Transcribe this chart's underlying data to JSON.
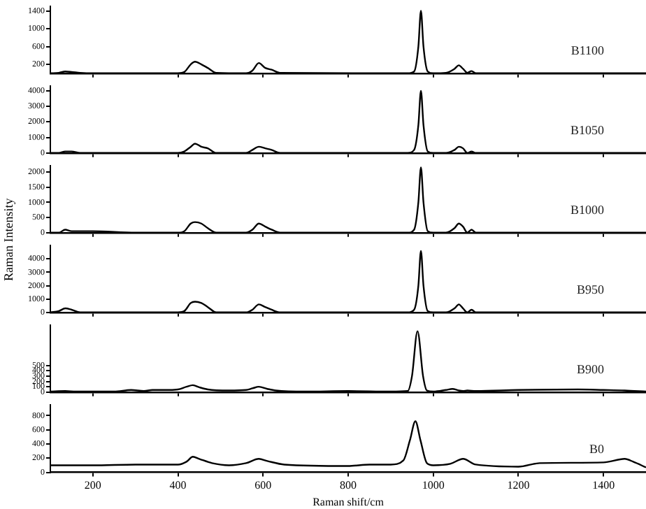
{
  "chart_data": [
    {
      "type": "line",
      "x": [
        100,
        120,
        135,
        150,
        170,
        200,
        300,
        400,
        415,
        430,
        440,
        455,
        470,
        490,
        560,
        575,
        590,
        605,
        620,
        640,
        900,
        940,
        955,
        965,
        971,
        977,
        987,
        1000,
        1030,
        1050,
        1060,
        1070,
        1080,
        1090,
        1100,
        1200,
        1500
      ],
      "series": [
        {
          "name": "B1100",
          "color": "#000000",
          "values": [
            0,
            10,
            40,
            30,
            10,
            0,
            0,
            0,
            30,
            200,
            260,
            200,
            120,
            10,
            0,
            60,
            230,
            120,
            80,
            10,
            0,
            0,
            40,
            600,
            1400,
            600,
            40,
            0,
            10,
            100,
            180,
            100,
            10,
            50,
            0,
            0,
            0
          ]
        }
      ],
      "xlim": [
        100,
        1500
      ],
      "xticks": [
        200,
        400,
        600,
        800,
        1000,
        1200,
        1400
      ],
      "ylim": [
        0,
        1500
      ],
      "yticks": [
        200,
        600,
        1000,
        1400
      ],
      "tick_labels": "y",
      "marker": "none"
    },
    {
      "type": "line",
      "x": [
        100,
        120,
        135,
        150,
        170,
        200,
        300,
        400,
        415,
        430,
        440,
        455,
        470,
        490,
        560,
        575,
        590,
        605,
        620,
        640,
        900,
        940,
        955,
        965,
        971,
        977,
        987,
        1000,
        1030,
        1050,
        1060,
        1070,
        1080,
        1090,
        1100,
        1200,
        1500
      ],
      "series": [
        {
          "name": "B1050",
          "color": "#000000",
          "values": [
            0,
            0,
            100,
            100,
            0,
            0,
            0,
            0,
            100,
            400,
            600,
            400,
            300,
            0,
            0,
            200,
            400,
            300,
            200,
            0,
            0,
            0,
            200,
            1800,
            4000,
            1800,
            100,
            0,
            0,
            200,
            400,
            300,
            0,
            100,
            0,
            0,
            0
          ]
        }
      ],
      "xlim": [
        100,
        1500
      ],
      "xticks": [
        200,
        400,
        600,
        800,
        1000,
        1200,
        1400
      ],
      "ylim": [
        0,
        4300
      ],
      "yticks": [
        0,
        1000,
        2000,
        3000,
        4000
      ],
      "tick_labels": "y",
      "marker": "none"
    },
    {
      "type": "line",
      "x": [
        100,
        120,
        135,
        150,
        170,
        200,
        300,
        400,
        415,
        430,
        440,
        455,
        470,
        490,
        560,
        575,
        590,
        605,
        620,
        640,
        900,
        940,
        955,
        965,
        971,
        977,
        987,
        1000,
        1030,
        1050,
        1060,
        1070,
        1080,
        1090,
        1100,
        1200,
        1500
      ],
      "series": [
        {
          "name": "B1000",
          "color": "#000000",
          "values": [
            0,
            0,
            100,
            50,
            50,
            50,
            0,
            0,
            50,
            300,
            350,
            300,
            150,
            0,
            0,
            100,
            300,
            200,
            100,
            0,
            0,
            0,
            100,
            1000,
            2150,
            1000,
            50,
            0,
            0,
            150,
            300,
            200,
            0,
            100,
            0,
            0,
            0
          ]
        }
      ],
      "xlim": [
        100,
        1500
      ],
      "xticks": [
        200,
        400,
        600,
        800,
        1000,
        1200,
        1400
      ],
      "ylim": [
        0,
        2200
      ],
      "yticks": [
        0,
        500,
        1000,
        1500,
        2000
      ],
      "ylabel": "Raman Intensity",
      "tick_labels": "y",
      "marker": "none"
    },
    {
      "type": "line",
      "x": [
        100,
        120,
        135,
        150,
        170,
        200,
        300,
        400,
        415,
        430,
        440,
        455,
        470,
        490,
        560,
        575,
        590,
        605,
        620,
        640,
        900,
        940,
        955,
        965,
        971,
        977,
        987,
        1000,
        1030,
        1050,
        1060,
        1070,
        1080,
        1090,
        1100,
        1200,
        1500
      ],
      "series": [
        {
          "name": "B950",
          "color": "#000000",
          "values": [
            0,
            100,
            300,
            200,
            0,
            0,
            0,
            0,
            100,
            700,
            800,
            700,
            400,
            0,
            0,
            200,
            600,
            400,
            200,
            0,
            0,
            0,
            200,
            2000,
            4600,
            2000,
            100,
            0,
            0,
            300,
            600,
            300,
            0,
            200,
            0,
            0,
            0
          ]
        }
      ],
      "xlim": [
        100,
        1500
      ],
      "xticks": [
        200,
        400,
        600,
        800,
        1000,
        1200,
        1400
      ],
      "ylim": [
        0,
        5000
      ],
      "yticks": [
        0,
        1000,
        2000,
        3000,
        4000
      ],
      "tick_labels": "y",
      "marker": "none"
    },
    {
      "type": "line",
      "x": [
        100,
        135,
        160,
        200,
        250,
        290,
        320,
        340,
        380,
        400,
        420,
        435,
        450,
        470,
        520,
        560,
        575,
        590,
        610,
        630,
        700,
        800,
        900,
        940,
        950,
        963,
        976,
        985,
        1000,
        1030,
        1045,
        1060,
        1070,
        1080,
        1100,
        1200,
        1340,
        1400,
        1450,
        1500
      ],
      "series": [
        {
          "name": "B900",
          "color": "#000000",
          "values": [
            10,
            20,
            10,
            10,
            10,
            40,
            20,
            40,
            40,
            50,
            100,
            130,
            90,
            50,
            30,
            40,
            70,
            100,
            60,
            30,
            10,
            20,
            10,
            20,
            300,
            1140,
            300,
            30,
            10,
            40,
            60,
            30,
            20,
            30,
            20,
            40,
            50,
            40,
            30,
            10
          ]
        }
      ],
      "xlim": [
        100,
        1500
      ],
      "xticks": [
        200,
        400,
        600,
        800,
        1000,
        1200,
        1400
      ],
      "ylim": [
        0,
        1250
      ],
      "yticks": [
        0,
        100,
        200,
        300,
        400,
        500
      ],
      "tick_labels": "y",
      "marker": "none"
    },
    {
      "type": "line",
      "x": [
        100,
        200,
        300,
        400,
        420,
        435,
        450,
        480,
        520,
        560,
        590,
        610,
        650,
        800,
        850,
        900,
        930,
        945,
        958,
        970,
        985,
        1000,
        1040,
        1070,
        1100,
        1200,
        1250,
        1400,
        1450,
        1470,
        1500
      ],
      "series": [
        {
          "name": "B0",
          "color": "#000000",
          "values": [
            100,
            100,
            110,
            110,
            150,
            220,
            190,
            130,
            100,
            130,
            190,
            160,
            110,
            90,
            110,
            110,
            170,
            450,
            720,
            450,
            130,
            100,
            120,
            190,
            110,
            80,
            130,
            140,
            190,
            150,
            70
          ]
        }
      ],
      "xlim": [
        100,
        1500
      ],
      "xticks": [
        200,
        400,
        600,
        800,
        1000,
        1200,
        1400
      ],
      "ylim": [
        0,
        950
      ],
      "yticks": [
        0,
        200,
        400,
        600,
        800
      ],
      "xlabel": "Raman shift/cm",
      "marker": "none"
    }
  ]
}
